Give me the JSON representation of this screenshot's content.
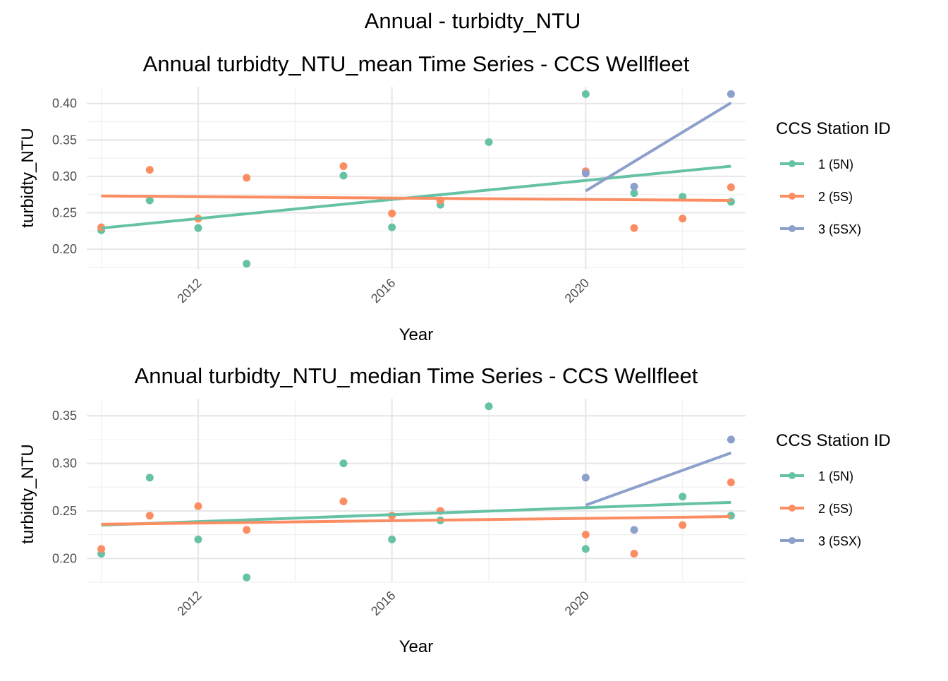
{
  "title": "Annual - turbidty_NTU",
  "legend": {
    "title": "CCS Station ID",
    "items": [
      {
        "label": "1 (5N)",
        "color": "#66C2A5"
      },
      {
        "label": "2 (5S)",
        "color": "#FC8D62"
      },
      {
        "label": "3 (5SX)",
        "color": "#8DA0CB"
      }
    ]
  },
  "chart_data": [
    {
      "type": "scatter",
      "title": "Annual turbidty_NTU_mean Time Series - CCS Wellfleet",
      "xlabel": "Year",
      "ylabel": "turbidty_NTU",
      "xlim": [
        2009.7,
        2023.3
      ],
      "ylim": [
        0.172,
        0.423
      ],
      "x_ticks": [
        2012,
        2016,
        2020
      ],
      "x_tick_labels": [
        "2012",
        "2016",
        "2020"
      ],
      "y_ticks": [
        0.2,
        0.25,
        0.3,
        0.35,
        0.4
      ],
      "y_tick_labels": [
        "0.20",
        "0.25",
        "0.30",
        "0.35",
        "0.40"
      ],
      "grid": true,
      "series": [
        {
          "name": "1 (5N)",
          "color": "#66C2A5",
          "points": [
            [
              2010,
              0.226
            ],
            [
              2011,
              0.267
            ],
            [
              2012,
              0.229
            ],
            [
              2013,
              0.18
            ],
            [
              2015,
              0.301
            ],
            [
              2016,
              0.23
            ],
            [
              2017,
              0.261
            ],
            [
              2018,
              0.347
            ],
            [
              2020,
              0.413
            ],
            [
              2021,
              0.277
            ],
            [
              2022,
              0.272
            ],
            [
              2023,
              0.265
            ]
          ],
          "trend": [
            [
              2010,
              0.229
            ],
            [
              2023,
              0.314
            ]
          ]
        },
        {
          "name": "2 (5S)",
          "color": "#FC8D62",
          "points": [
            [
              2010,
              0.23
            ],
            [
              2011,
              0.309
            ],
            [
              2012,
              0.242
            ],
            [
              2013,
              0.298
            ],
            [
              2015,
              0.314
            ],
            [
              2016,
              0.249
            ],
            [
              2017,
              0.267
            ],
            [
              2020,
              0.307
            ],
            [
              2021,
              0.229
            ],
            [
              2022,
              0.242
            ],
            [
              2023,
              0.285
            ]
          ],
          "trend": [
            [
              2010,
              0.273
            ],
            [
              2023,
              0.267
            ]
          ]
        },
        {
          "name": "3 (5SX)",
          "color": "#8DA0CB",
          "points": [
            [
              2020,
              0.304
            ],
            [
              2021,
              0.286
            ],
            [
              2023,
              0.413
            ]
          ],
          "trend": [
            [
              2020,
              0.28
            ],
            [
              2023,
              0.401
            ]
          ]
        }
      ]
    },
    {
      "type": "scatter",
      "title": "Annual turbidty_NTU_median Time Series - CCS Wellfleet",
      "xlabel": "Year",
      "ylabel": "turbidty_NTU",
      "xlim": [
        2009.7,
        2023.3
      ],
      "ylim": [
        0.175,
        0.368
      ],
      "x_ticks": [
        2012,
        2016,
        2020
      ],
      "x_tick_labels": [
        "2012",
        "2016",
        "2020"
      ],
      "y_ticks": [
        0.2,
        0.25,
        0.3,
        0.35
      ],
      "y_tick_labels": [
        "0.20",
        "0.25",
        "0.30",
        "0.35"
      ],
      "grid": true,
      "series": [
        {
          "name": "1 (5N)",
          "color": "#66C2A5",
          "points": [
            [
              2010,
              0.205
            ],
            [
              2011,
              0.285
            ],
            [
              2012,
              0.22
            ],
            [
              2013,
              0.18
            ],
            [
              2015,
              0.3
            ],
            [
              2016,
              0.22
            ],
            [
              2017,
              0.24
            ],
            [
              2018,
              0.36
            ],
            [
              2020,
              0.21
            ],
            [
              2022,
              0.265
            ],
            [
              2023,
              0.245
            ]
          ],
          "trend": [
            [
              2010,
              0.235
            ],
            [
              2023,
              0.259
            ]
          ]
        },
        {
          "name": "2 (5S)",
          "color": "#FC8D62",
          "points": [
            [
              2010,
              0.21
            ],
            [
              2011,
              0.245
            ],
            [
              2012,
              0.255
            ],
            [
              2013,
              0.23
            ],
            [
              2015,
              0.26
            ],
            [
              2016,
              0.245
            ],
            [
              2017,
              0.25
            ],
            [
              2020,
              0.225
            ],
            [
              2021,
              0.205
            ],
            [
              2022,
              0.235
            ],
            [
              2023,
              0.28
            ]
          ],
          "trend": [
            [
              2010,
              0.236
            ],
            [
              2023,
              0.244
            ]
          ]
        },
        {
          "name": "3 (5SX)",
          "color": "#8DA0CB",
          "points": [
            [
              2020,
              0.285
            ],
            [
              2021,
              0.23
            ],
            [
              2023,
              0.325
            ]
          ],
          "trend": [
            [
              2020,
              0.256
            ],
            [
              2023,
              0.311
            ]
          ]
        }
      ]
    }
  ]
}
